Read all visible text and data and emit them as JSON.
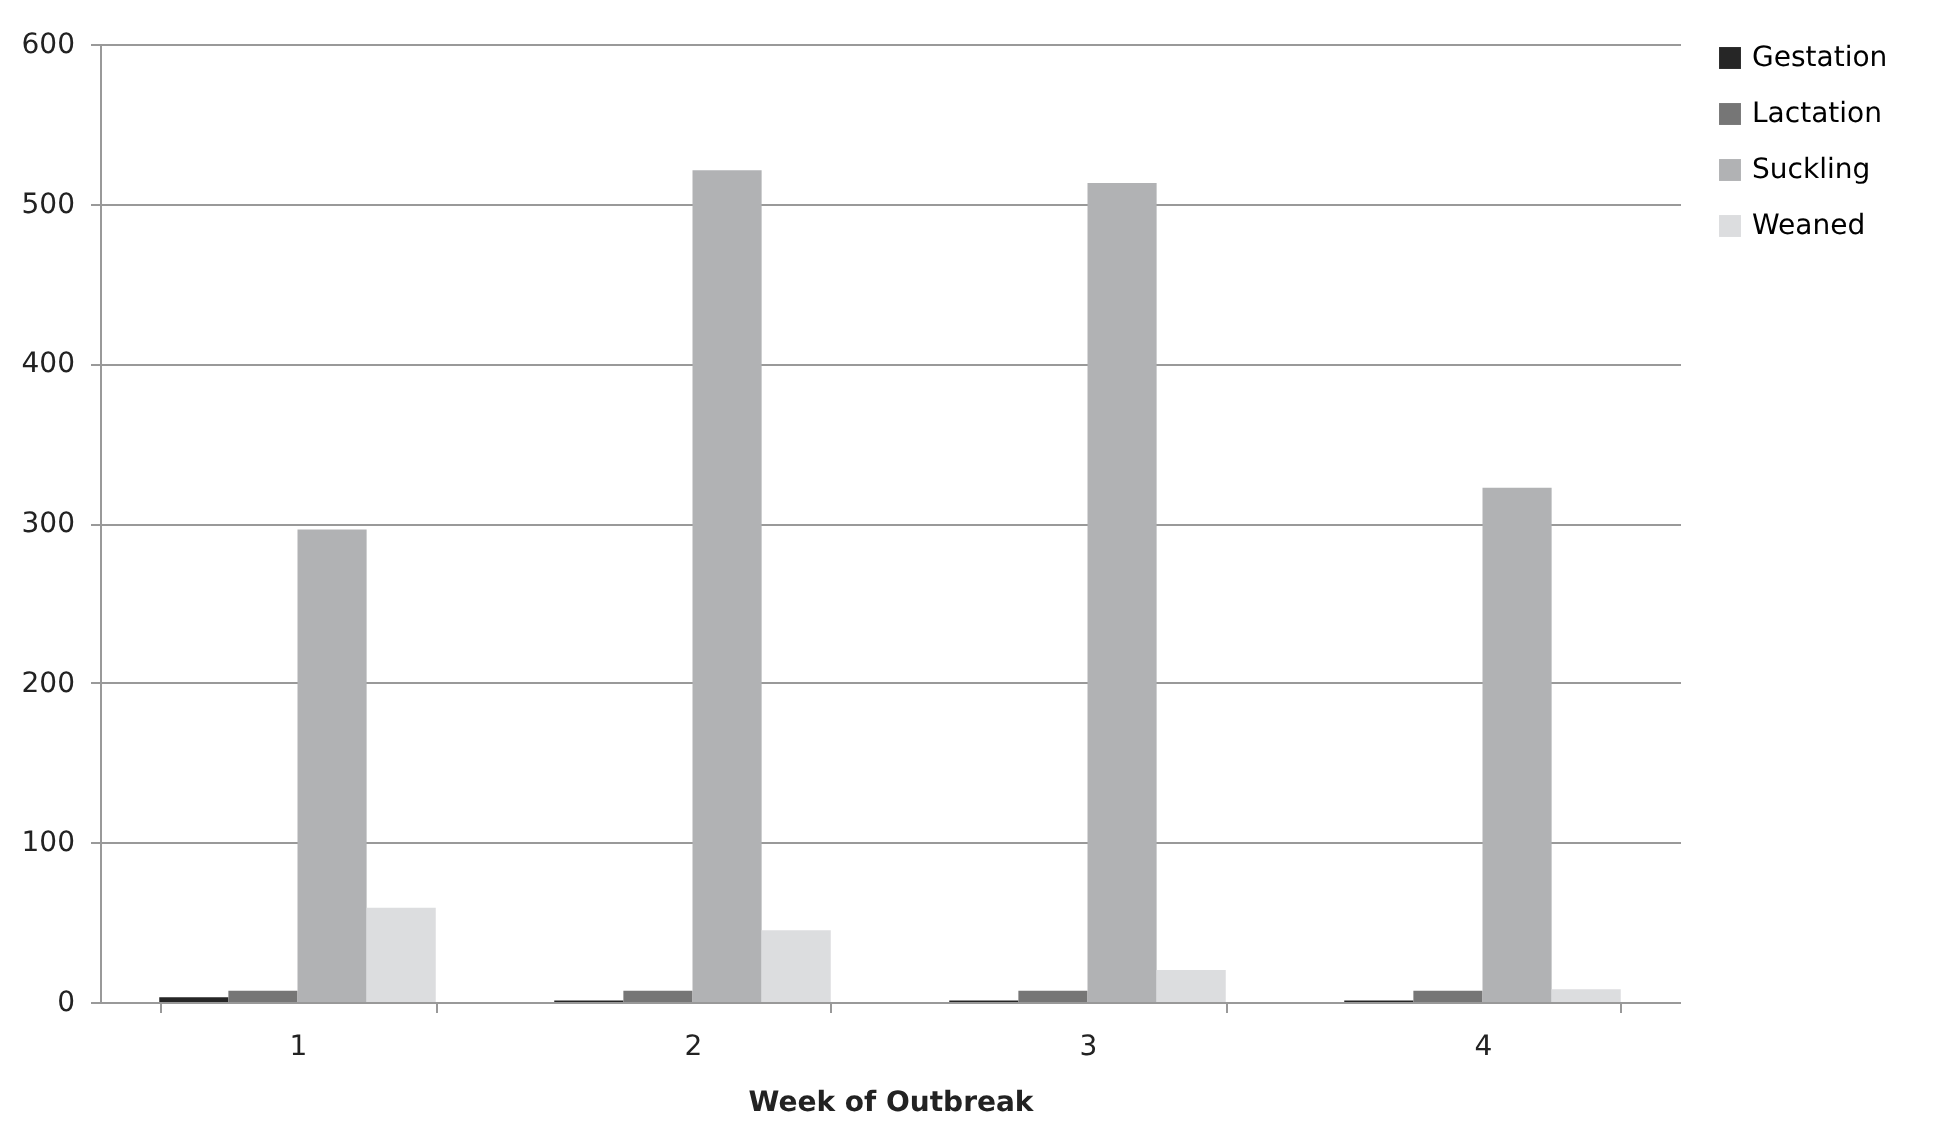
{
  "chart_data": {
    "type": "bar",
    "xlabel": "Week of Outbreak",
    "categories": [
      "1",
      "2",
      "3",
      "4"
    ],
    "series": [
      {
        "name": "Gestation",
        "color": "#262626",
        "values": [
          3,
          1,
          1,
          1
        ]
      },
      {
        "name": "Lactation",
        "color": "#767676",
        "values": [
          7,
          7,
          7,
          7
        ]
      },
      {
        "name": "Suckling",
        "color": "#b1b2b4",
        "values": [
          296,
          521,
          513,
          322
        ]
      },
      {
        "name": "Weaned",
        "color": "#dcdddf",
        "values": [
          59,
          45,
          20,
          8
        ]
      }
    ],
    "ylim": [
      0,
      600
    ],
    "yticks": [
      0,
      100,
      200,
      300,
      400,
      500,
      600
    ],
    "grid": "y",
    "legend": "right"
  }
}
